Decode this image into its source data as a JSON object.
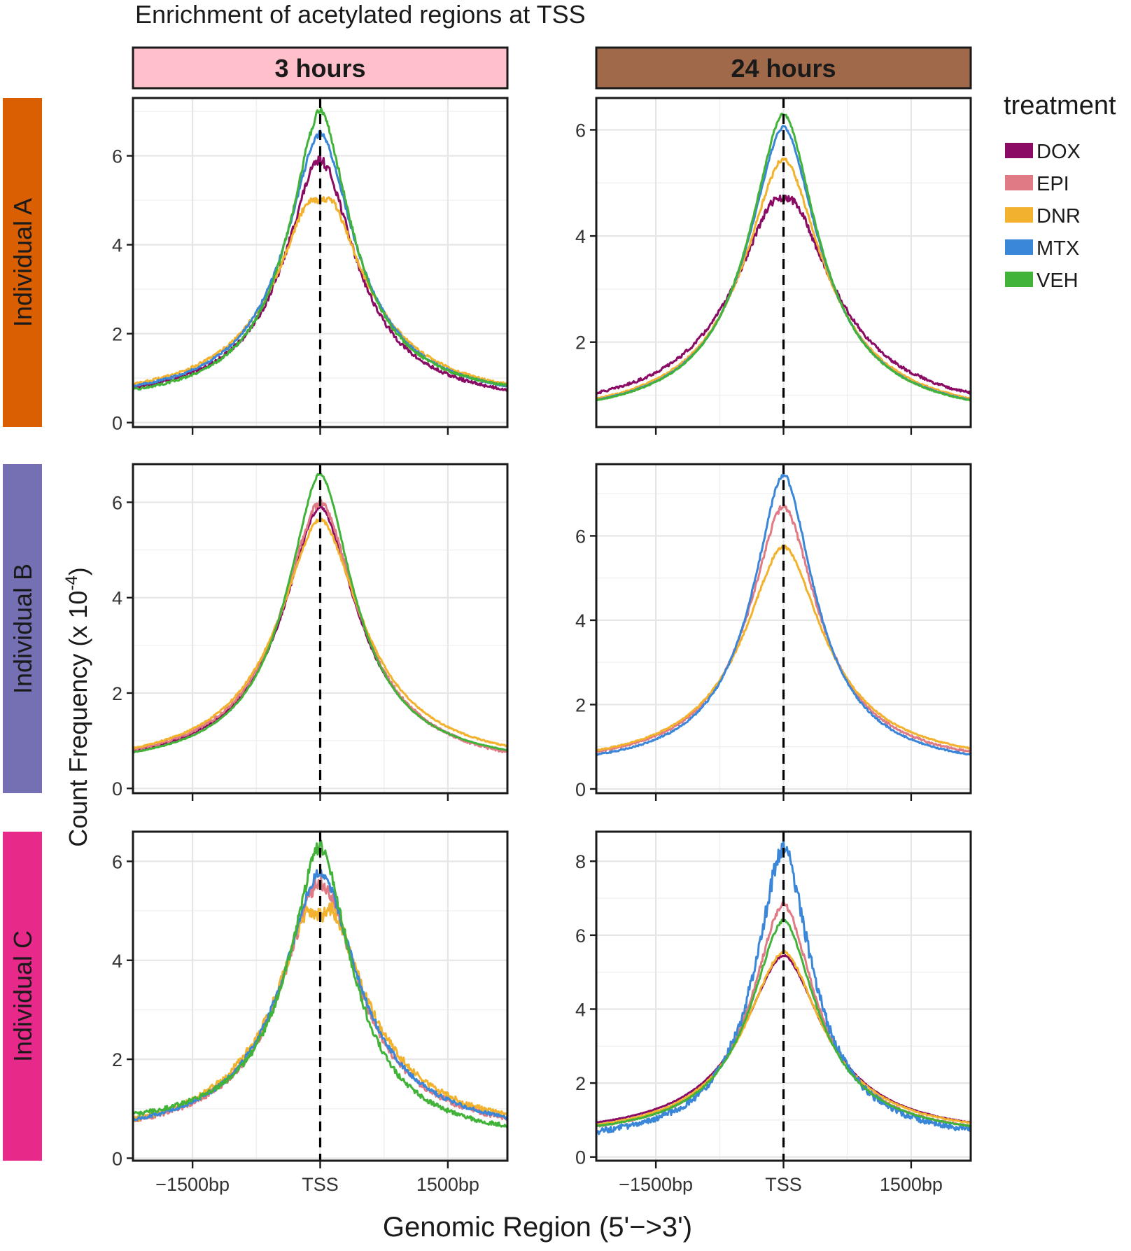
{
  "chart_data": {
    "type": "line",
    "title": "Enrichment of acetylated regions at TSS",
    "xlabel": "Genomic Region (5'−>3')",
    "ylabel_main": "Count Frequency (x 10",
    "ylabel_sup": "-4",
    "ylabel_close": ")",
    "xticks": [
      {
        "label": "−1500bp",
        "value": -1500
      },
      {
        "label": "TSS",
        "value": 0
      },
      {
        "label": "1500bp",
        "value": 1500
      }
    ],
    "xlim": [
      -2200,
      2200
    ],
    "grid": true,
    "legend": {
      "title": "treatment",
      "placement": "right",
      "items": [
        {
          "name": "DOX",
          "color": "#8b0a64"
        },
        {
          "name": "EPI",
          "color": "#e07a84"
        },
        {
          "name": "DNR",
          "color": "#f2b22d"
        },
        {
          "name": "MTX",
          "color": "#3a86d8"
        },
        {
          "name": "VEH",
          "color": "#41b339"
        }
      ]
    },
    "columns": [
      {
        "label": "3 hours",
        "strip_color": "#ffc0cb"
      },
      {
        "label": "24 hours",
        "strip_color": "#a0694a"
      }
    ],
    "rows": [
      {
        "label": "Individual A",
        "strip_color": "#d95f02"
      },
      {
        "label": "Individual B",
        "strip_color": "#7570b3"
      },
      {
        "label": "Individual C",
        "strip_color": "#e7298a"
      }
    ],
    "panels": [
      {
        "row": 0,
        "col": 0,
        "ylim": [
          -0.1,
          7.3
        ],
        "yticks": [
          0,
          2,
          4,
          6
        ],
        "series": [
          {
            "name": "DOX",
            "peak": 6.0,
            "base_left": 0.4,
            "base_right": 0.35,
            "width": 520,
            "dip": 0.1,
            "noise": 0.08
          },
          {
            "name": "DNR",
            "peak": 5.4,
            "base_left": 0.4,
            "base_right": 0.4,
            "width": 620,
            "dip": 0.4,
            "noise": 0.06
          },
          {
            "name": "MTX",
            "peak": 6.5,
            "base_left": 0.4,
            "base_right": 0.4,
            "width": 520,
            "dip": 0,
            "noise": 0.05
          },
          {
            "name": "VEH",
            "peak": 7.0,
            "base_left": 0.35,
            "base_right": 0.45,
            "width": 470,
            "dip": 0,
            "noise": 0.06
          }
        ]
      },
      {
        "row": 0,
        "col": 1,
        "ylim": [
          0.4,
          6.6
        ],
        "yticks": [
          2,
          4,
          6
        ],
        "series": [
          {
            "name": "DOX",
            "peak": 4.9,
            "base_left": 0.55,
            "base_right": 0.55,
            "width": 700,
            "dip": 0.2,
            "noise": 0.05
          },
          {
            "name": "DNR",
            "peak": 5.45,
            "base_left": 0.5,
            "base_right": 0.5,
            "width": 600,
            "dip": 0,
            "noise": 0.03
          },
          {
            "name": "MTX",
            "peak": 6.05,
            "base_left": 0.5,
            "base_right": 0.5,
            "width": 540,
            "dip": 0,
            "noise": 0.02
          },
          {
            "name": "VEH",
            "peak": 6.3,
            "base_left": 0.5,
            "base_right": 0.5,
            "width": 520,
            "dip": 0,
            "noise": 0.02
          }
        ]
      },
      {
        "row": 1,
        "col": 0,
        "ylim": [
          -0.1,
          6.8
        ],
        "yticks": [
          0,
          2,
          4,
          6
        ],
        "series": [
          {
            "name": "DOX",
            "peak": 5.9,
            "base_left": 0.35,
            "base_right": 0.35,
            "width": 560,
            "dip": 0,
            "noise": 0.03
          },
          {
            "name": "EPI",
            "peak": 6.0,
            "base_left": 0.35,
            "base_right": 0.3,
            "width": 570,
            "dip": 0,
            "noise": 0.06
          },
          {
            "name": "DNR",
            "peak": 5.65,
            "base_left": 0.35,
            "base_right": 0.4,
            "width": 620,
            "dip": 0,
            "noise": 0.03
          },
          {
            "name": "VEH",
            "peak": 6.6,
            "base_left": 0.35,
            "base_right": 0.4,
            "width": 500,
            "dip": 0,
            "noise": 0.02
          }
        ]
      },
      {
        "row": 1,
        "col": 1,
        "ylim": [
          -0.1,
          7.7
        ],
        "yticks": [
          0,
          2,
          4,
          6
        ],
        "series": [
          {
            "name": "EPI",
            "peak": 6.7,
            "base_left": 0.45,
            "base_right": 0.45,
            "width": 520,
            "dip": 0,
            "noise": 0.05
          },
          {
            "name": "DNR",
            "peak": 5.75,
            "base_left": 0.45,
            "base_right": 0.5,
            "width": 600,
            "dip": 0,
            "noise": 0.03
          },
          {
            "name": "MTX",
            "peak": 7.45,
            "base_left": 0.4,
            "base_right": 0.4,
            "width": 470,
            "dip": 0,
            "noise": 0.04
          }
        ]
      },
      {
        "row": 2,
        "col": 0,
        "ylim": [
          -0.05,
          6.6
        ],
        "yticks": [
          0,
          2,
          4,
          6
        ],
        "series": [
          {
            "name": "EPI",
            "peak": 5.7,
            "base_left": 0.35,
            "base_right": 0.4,
            "width": 560,
            "dip": 0.15,
            "noise": 0.12
          },
          {
            "name": "DNR",
            "peak": 5.5,
            "base_left": 0.3,
            "base_right": 0.4,
            "width": 620,
            "dip": 0.6,
            "noise": 0.12
          },
          {
            "name": "MTX",
            "peak": 5.8,
            "base_left": 0.35,
            "base_right": 0.4,
            "width": 560,
            "dip": 0,
            "noise": 0.08
          },
          {
            "name": "VEH",
            "peak": 6.3,
            "base_left": 0.55,
            "base_right": 0.3,
            "width": 470,
            "dip": 0,
            "noise": 0.1
          }
        ]
      },
      {
        "row": 2,
        "col": 1,
        "ylim": [
          -0.1,
          8.8
        ],
        "yticks": [
          0,
          2,
          4,
          6,
          8
        ],
        "series": [
          {
            "name": "DOX",
            "peak": 5.45,
            "base_left": 0.5,
            "base_right": 0.5,
            "width": 600,
            "dip": 0,
            "noise": 0.02
          },
          {
            "name": "EPI",
            "peak": 6.85,
            "base_left": 0.45,
            "base_right": 0.45,
            "width": 480,
            "dip": 0,
            "noise": 0.06
          },
          {
            "name": "DNR",
            "peak": 5.55,
            "base_left": 0.45,
            "base_right": 0.5,
            "width": 580,
            "dip": 0,
            "noise": 0.03
          },
          {
            "name": "MTX",
            "peak": 8.4,
            "base_left": 0.3,
            "base_right": 0.35,
            "width": 420,
            "dip": 0,
            "noise": 0.2
          },
          {
            "name": "VEH",
            "peak": 6.4,
            "base_left": 0.45,
            "base_right": 0.45,
            "width": 500,
            "dip": 0,
            "noise": 0.03
          }
        ]
      }
    ]
  }
}
